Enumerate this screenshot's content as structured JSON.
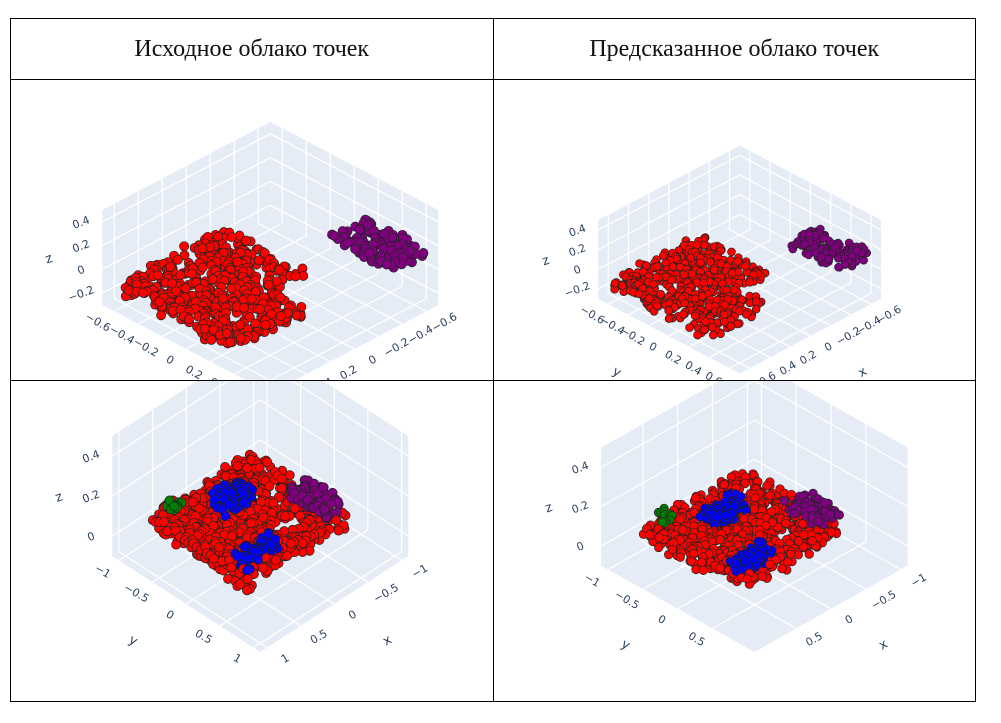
{
  "table": {
    "headers": [
      "Исходное облако точек",
      "Предсказанное облако точек"
    ]
  },
  "chart_data": [
    {
      "type": "scatter3d",
      "panel": "original-top",
      "axes": {
        "x": {
          "label": "x",
          "range": [
            -0.7,
            0.7
          ],
          "ticks": [
            "−0.6",
            "−0.4",
            "−0.2",
            "0",
            "0.2",
            "0.4",
            "0.6"
          ],
          "tickvals": [
            -0.6,
            -0.4,
            -0.2,
            0,
            0.2,
            0.4,
            0.6
          ]
        },
        "y": {
          "label": "y",
          "range": [
            -0.7,
            0.7
          ],
          "ticks": [
            "−0.6",
            "−0.4",
            "−0.2",
            "0",
            "0.2",
            "0.4",
            "0.6"
          ],
          "tickvals": [
            -0.6,
            -0.4,
            -0.2,
            0,
            0.2,
            0.4,
            0.6
          ]
        },
        "z": {
          "label": "z",
          "range": [
            -0.3,
            0.5
          ],
          "ticks": [
            "−0.2",
            "0",
            "0.2",
            "0.4"
          ],
          "tickvals": [
            -0.2,
            0,
            0.2,
            0.4
          ]
        }
      },
      "clusters": [
        {
          "color": "#ff0000",
          "x": [
            -0.25,
            0.65
          ],
          "y": [
            -0.65,
            0.35
          ],
          "z": [
            -0.2,
            -0.1
          ],
          "n": 650
        },
        {
          "color": "#800080",
          "x": [
            -0.65,
            -0.35
          ],
          "y": [
            0.15,
            0.65
          ],
          "z": [
            0.1,
            0.2
          ],
          "n": 140
        }
      ]
    },
    {
      "type": "scatter3d",
      "panel": "predicted-top",
      "axes": {
        "x": {
          "label": "x",
          "range": [
            -0.7,
            0.7
          ],
          "ticks": [
            "−0.6",
            "−0.4",
            "−0.2",
            "0",
            "0.2",
            "0.4",
            "0.6"
          ],
          "tickvals": [
            -0.6,
            -0.4,
            -0.2,
            0,
            0.2,
            0.4,
            0.6
          ]
        },
        "y": {
          "label": "y",
          "range": [
            -0.7,
            0.7
          ],
          "ticks": [
            "−0.6",
            "−0.4",
            "−0.2",
            "0",
            "0.2",
            "0.4",
            "0.6"
          ],
          "tickvals": [
            -0.6,
            -0.4,
            -0.2,
            0,
            0.2,
            0.4,
            0.6
          ]
        },
        "z": {
          "label": "z",
          "range": [
            -0.3,
            0.5
          ],
          "ticks": [
            "−0.2",
            "0",
            "0.2",
            "0.4"
          ],
          "tickvals": [
            -0.2,
            0,
            0.2,
            0.4
          ]
        }
      },
      "clusters": [
        {
          "color": "#ff0000",
          "x": [
            -0.25,
            0.65
          ],
          "y": [
            -0.65,
            0.35
          ],
          "z": [
            -0.2,
            -0.1
          ],
          "n": 600
        },
        {
          "color": "#800080",
          "x": [
            -0.65,
            -0.35
          ],
          "y": [
            0.15,
            0.65
          ],
          "z": [
            0.1,
            0.2
          ],
          "n": 120
        }
      ]
    },
    {
      "type": "scatter3d",
      "panel": "original-bottom",
      "axes": {
        "x": {
          "label": "x",
          "range": [
            -1.1,
            1.1
          ],
          "ticks": [
            "−1",
            "−0.5",
            "0",
            "0.5",
            "1"
          ],
          "tickvals": [
            -1,
            -0.5,
            0,
            0.5,
            1
          ]
        },
        "y": {
          "label": "y",
          "range": [
            -1.1,
            1.1
          ],
          "ticks": [
            "−1",
            "−0.5",
            "0",
            "0.5",
            "1"
          ],
          "tickvals": [
            -1,
            -0.5,
            0,
            0.5,
            1
          ]
        },
        "z": {
          "label": "z",
          "range": [
            -0.1,
            0.5
          ],
          "ticks": [
            "0",
            "0.2",
            "0.4"
          ],
          "tickvals": [
            0,
            0.2,
            0.4
          ]
        }
      },
      "clusters": [
        {
          "color": "#ff0000",
          "x": [
            -0.75,
            0.75
          ],
          "y": [
            -0.9,
            0.55
          ],
          "z": [
            0.0,
            0.08
          ],
          "n": 900
        },
        {
          "color": "#800080",
          "x": [
            -0.75,
            -0.45
          ],
          "y": [
            -0.05,
            0.5
          ],
          "z": [
            0.08,
            0.14
          ],
          "n": 80
        },
        {
          "color": "#0000ff",
          "x": [
            -0.2,
            0.25
          ],
          "y": [
            -0.55,
            -0.25
          ],
          "z": [
            0.08,
            0.14
          ],
          "n": 90
        },
        {
          "color": "#0000ff",
          "x": [
            0.2,
            0.7
          ],
          "y": [
            0.3,
            0.5
          ],
          "z": [
            0.08,
            0.14
          ],
          "n": 60
        },
        {
          "color": "#008000",
          "x": [
            0.45,
            0.6
          ],
          "y": [
            -0.85,
            -0.7
          ],
          "z": [
            0.08,
            0.12
          ],
          "n": 12
        }
      ]
    },
    {
      "type": "scatter3d",
      "panel": "predicted-bottom",
      "axes": {
        "x": {
          "label": "x",
          "range": [
            -1.1,
            1.1
          ],
          "ticks": [
            "−1",
            "−0.5",
            "0",
            "0.5"
          ],
          "tickvals": [
            -1,
            -0.5,
            0,
            0.5
          ]
        },
        "y": {
          "label": "y",
          "range": [
            -1.1,
            1.1
          ],
          "ticks": [
            "−1",
            "−0.5",
            "0",
            "0.5"
          ],
          "tickvals": [
            -1,
            -0.5,
            0,
            0.5
          ]
        },
        "z": {
          "label": "z",
          "range": [
            -0.1,
            0.5
          ],
          "ticks": [
            "0",
            "0.2",
            "0.4"
          ],
          "tickvals": [
            0,
            0.2,
            0.4
          ]
        }
      },
      "clusters": [
        {
          "color": "#ff0000",
          "x": [
            -0.75,
            0.75
          ],
          "y": [
            -0.9,
            0.55
          ],
          "z": [
            0.0,
            0.08
          ],
          "n": 900
        },
        {
          "color": "#800080",
          "x": [
            -0.75,
            -0.45
          ],
          "y": [
            -0.05,
            0.5
          ],
          "z": [
            0.08,
            0.14
          ],
          "n": 80
        },
        {
          "color": "#0000ff",
          "x": [
            -0.2,
            0.25
          ],
          "y": [
            -0.55,
            -0.25
          ],
          "z": [
            0.08,
            0.14
          ],
          "n": 90
        },
        {
          "color": "#0000ff",
          "x": [
            0.2,
            0.7
          ],
          "y": [
            0.3,
            0.5
          ],
          "z": [
            0.08,
            0.14
          ],
          "n": 60
        },
        {
          "color": "#008000",
          "x": [
            0.45,
            0.6
          ],
          "y": [
            -0.85,
            -0.7
          ],
          "z": [
            0.08,
            0.12
          ],
          "n": 12
        }
      ]
    }
  ]
}
